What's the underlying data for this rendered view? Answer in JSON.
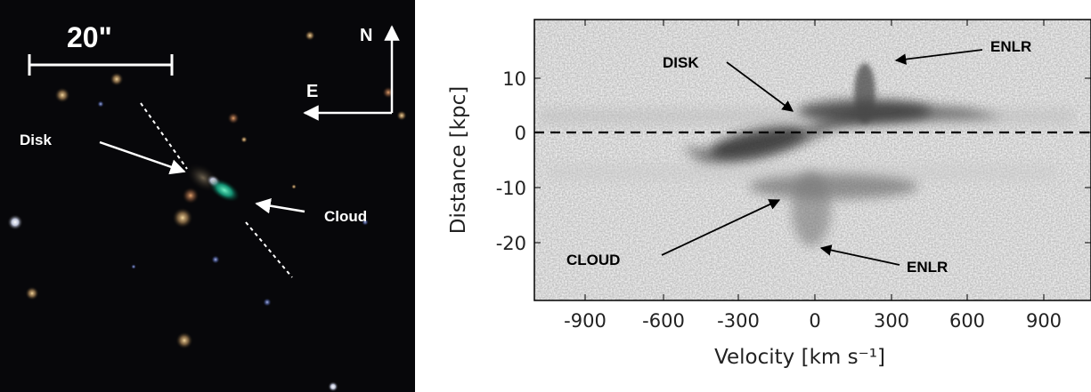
{
  "sky_image": {
    "scale_label": "20\"",
    "compass_north": "N",
    "compass_east": "E",
    "label_disk": "Disk",
    "label_cloud": "Cloud"
  },
  "chart_data": {
    "type": "heatmap",
    "x_ticks": [
      -900,
      -600,
      -300,
      0,
      300,
      600,
      900
    ],
    "x_tick_labels": [
      "-900",
      "-600",
      "-300",
      "0",
      "300",
      "600",
      "900"
    ],
    "y_ticks": [
      10,
      0,
      -10,
      -20
    ],
    "y_tick_labels": [
      "10",
      "0",
      "-10",
      "-20"
    ],
    "xlim": [
      -1100,
      1070
    ],
    "ylim": [
      -30,
      20
    ],
    "xlabel": "Velocity [km s⁻¹]",
    "ylabel": "Distance [kpc]",
    "reference_line": {
      "y": 0,
      "style": "dashed"
    },
    "annotations": [
      {
        "label": "DISK",
        "text_at": [
          -720,
          14
        ],
        "points_to": [
          -70,
          4
        ]
      },
      {
        "label": "ENLR",
        "text_at": [
          480,
          15.5
        ],
        "points_to": [
          180,
          14
        ]
      },
      {
        "label": "CLOUD",
        "text_at": [
          -870,
          -23.5
        ],
        "points_to": [
          -100,
          -12
        ]
      },
      {
        "label": "ENLR",
        "text_at": [
          380,
          -24.5
        ],
        "points_to": [
          20,
          -21.5
        ]
      }
    ]
  }
}
